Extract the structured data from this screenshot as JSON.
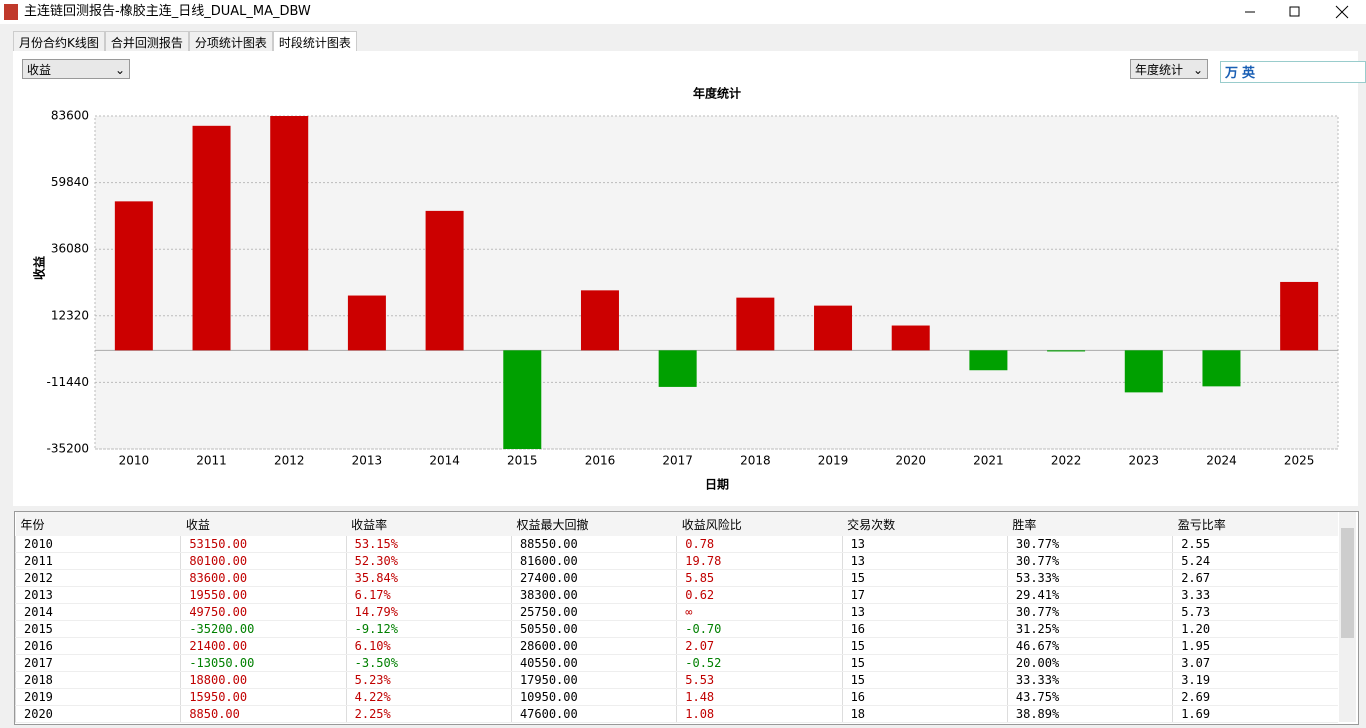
{
  "window": {
    "title": "主连链回测报告-橡胶主连_日线_DUAL_MA_DBW"
  },
  "tabs": [
    "月份合约K线图",
    "合并回测报告",
    "分项统计图表",
    "时段统计图表"
  ],
  "metric_select": "收益",
  "period_select": "年度统计",
  "ime_toolbar": [
    "万",
    "英"
  ],
  "chart_data": {
    "type": "bar",
    "title": "年度统计",
    "xlabel": "日期",
    "ylabel": "收益",
    "categories": [
      "2010",
      "2011",
      "2012",
      "2013",
      "2014",
      "2015",
      "2016",
      "2017",
      "2018",
      "2019",
      "2020",
      "2021",
      "2022",
      "2023",
      "2024",
      "2025"
    ],
    "values": [
      53150,
      80100,
      83600,
      19550,
      49750,
      -35200,
      21400,
      -13050,
      18800,
      15950,
      8850,
      -7100,
      -400,
      -15000,
      -12850,
      24400
    ],
    "positive_color": "#cc0000",
    "negative_color": "#00a000",
    "ylim": [
      -35200,
      83600
    ],
    "yticks": [
      -35200,
      -11440,
      12320,
      36080,
      59840,
      83600
    ],
    "grid": true
  },
  "table": {
    "header": [
      "年份",
      "收益",
      "收益率",
      "权益最大回撤",
      "收益风险比",
      "交易次数",
      "胜率",
      "盈亏比率"
    ],
    "rows": [
      [
        "2010",
        "53150.00",
        "53.15%",
        "88550.00",
        "0.78",
        "13",
        "30.77%",
        "2.55"
      ],
      [
        "2011",
        "80100.00",
        "52.30%",
        "81600.00",
        "19.78",
        "13",
        "30.77%",
        "5.24"
      ],
      [
        "2012",
        "83600.00",
        "35.84%",
        "27400.00",
        "5.85",
        "15",
        "53.33%",
        "2.67"
      ],
      [
        "2013",
        "19550.00",
        "6.17%",
        "38300.00",
        "0.62",
        "17",
        "29.41%",
        "3.33"
      ],
      [
        "2014",
        "49750.00",
        "14.79%",
        "25750.00",
        "∞",
        "13",
        "30.77%",
        "5.73"
      ],
      [
        "2015",
        "-35200.00",
        "-9.12%",
        "50550.00",
        "-0.70",
        "16",
        "31.25%",
        "1.20"
      ],
      [
        "2016",
        "21400.00",
        "6.10%",
        "28600.00",
        "2.07",
        "15",
        "46.67%",
        "1.95"
      ],
      [
        "2017",
        "-13050.00",
        "-3.50%",
        "40550.00",
        "-0.52",
        "15",
        "20.00%",
        "3.07"
      ],
      [
        "2018",
        "18800.00",
        "5.23%",
        "17950.00",
        "5.53",
        "15",
        "33.33%",
        "3.19"
      ],
      [
        "2019",
        "15950.00",
        "4.22%",
        "10950.00",
        "1.48",
        "16",
        "43.75%",
        "2.69"
      ],
      [
        "2020",
        "8850.00",
        "2.25%",
        "47600.00",
        "1.08",
        "18",
        "38.89%",
        "1.69"
      ]
    ]
  }
}
